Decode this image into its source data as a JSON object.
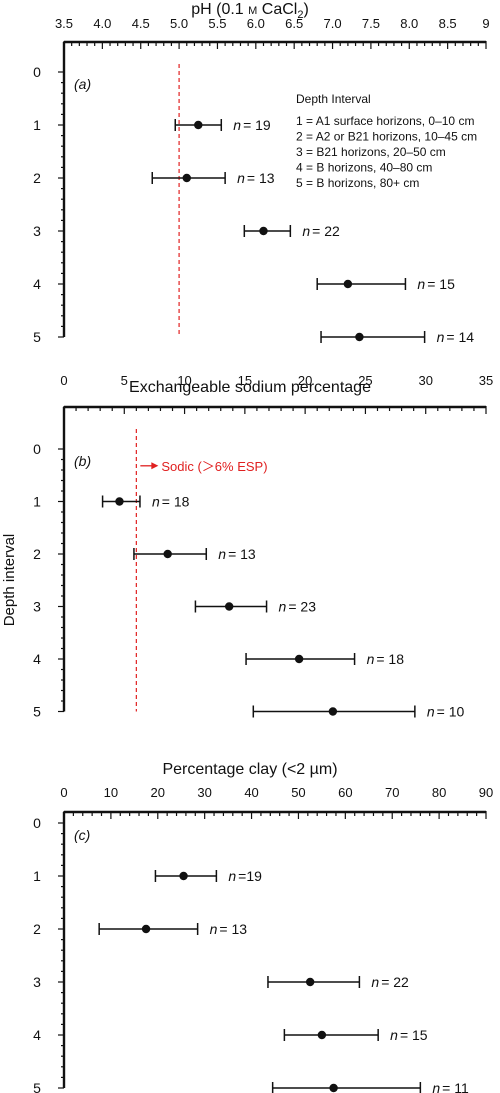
{
  "chart_data": [
    {
      "type": "scatter",
      "panel": "(a)",
      "title": "pH (0.1 M CaCl2)",
      "title_parts": {
        "pre": "pH (0.1 ",
        "unit_m": "M",
        "mid": " CaCl",
        "sub": "2",
        "post": ")"
      },
      "xlim": [
        3.5,
        9
      ],
      "xticks": [
        "3.5",
        "4.0",
        "4.5",
        "5.0",
        "5.5",
        "6.0",
        "6.5",
        "7.0",
        "7.5",
        "8.0",
        "8.5",
        "9"
      ],
      "xtick_values": [
        3.5,
        4.0,
        4.5,
        5.0,
        5.5,
        6.0,
        6.5,
        7.0,
        7.5,
        8.0,
        8.5,
        9.0
      ],
      "yticks": [
        "0",
        "1",
        "2",
        "3",
        "4",
        "5"
      ],
      "ylim": [
        0,
        5
      ],
      "points": [
        {
          "depth": 1,
          "mean": 5.25,
          "low": 4.95,
          "high": 5.55,
          "n_label": "= 19"
        },
        {
          "depth": 2,
          "mean": 5.1,
          "low": 4.65,
          "high": 5.6,
          "n_label": "= 13"
        },
        {
          "depth": 3,
          "mean": 6.1,
          "low": 5.85,
          "high": 6.45,
          "n_label": "= 22"
        },
        {
          "depth": 4,
          "mean": 7.2,
          "low": 6.8,
          "high": 7.95,
          "n_label": "= 15"
        },
        {
          "depth": 5,
          "mean": 7.35,
          "low": 6.85,
          "high": 8.2,
          "n_label": "= 14"
        }
      ],
      "reference_line": {
        "x": 5.0
      },
      "legend": {
        "title": "Depth Interval",
        "items": [
          "1 = A1 surface horizons, 0–10 cm",
          "2 = A2 or B21 horizons, 10–45 cm",
          "3 = B21 horizons, 20–50 cm",
          "4 = B horizons, 40–80 cm",
          "5 = B horizons, 80+ cm"
        ]
      }
    },
    {
      "type": "scatter",
      "panel": "(b)",
      "title": "Exchangeable sodium percentage",
      "xlim": [
        0,
        35
      ],
      "xticks": [
        "0",
        "5",
        "10",
        "15",
        "20",
        "25",
        "30",
        "35"
      ],
      "xtick_values": [
        0,
        5,
        10,
        15,
        20,
        25,
        30,
        35
      ],
      "yticks": [
        "0",
        "1",
        "2",
        "3",
        "4",
        "5"
      ],
      "ylim": [
        0,
        5
      ],
      "ylabel": "Depth interval",
      "points": [
        {
          "depth": 1,
          "mean": 4.6,
          "low": 3.2,
          "high": 6.3,
          "n_label": "= 18"
        },
        {
          "depth": 2,
          "mean": 8.6,
          "low": 5.8,
          "high": 11.8,
          "n_label": "= 13"
        },
        {
          "depth": 3,
          "mean": 13.7,
          "low": 10.9,
          "high": 16.8,
          "n_label": "= 23"
        },
        {
          "depth": 4,
          "mean": 19.5,
          "low": 15.1,
          "high": 24.1,
          "n_label": "= 18"
        },
        {
          "depth": 5,
          "mean": 22.3,
          "low": 15.7,
          "high": 29.1,
          "n_label": "= 10"
        }
      ],
      "reference_line": {
        "x": 6
      },
      "annotation": "Sodic (＞6% ESP)"
    },
    {
      "type": "scatter",
      "panel": "(c)",
      "title": "Percentage clay (<2 µm)",
      "xlim": [
        0,
        90
      ],
      "xticks": [
        "0",
        "10",
        "20",
        "30",
        "40",
        "50",
        "60",
        "70",
        "80",
        "90"
      ],
      "xtick_values": [
        0,
        10,
        20,
        30,
        40,
        50,
        60,
        70,
        80,
        90
      ],
      "yticks": [
        "0",
        "1",
        "2",
        "3",
        "4",
        "5"
      ],
      "ylim": [
        0,
        5
      ],
      "points": [
        {
          "depth": 1,
          "mean": 25.5,
          "low": 19.5,
          "high": 32.5,
          "n_label": "=19"
        },
        {
          "depth": 2,
          "mean": 17.5,
          "low": 7.5,
          "high": 28.5,
          "n_label": "= 13"
        },
        {
          "depth": 3,
          "mean": 52.5,
          "low": 43.5,
          "high": 63,
          "n_label": "= 22"
        },
        {
          "depth": 4,
          "mean": 55,
          "low": 47,
          "high": 67,
          "n_label": "= 15"
        },
        {
          "depth": 5,
          "mean": 57.5,
          "low": 44.5,
          "high": 76,
          "n_label": "= 11"
        }
      ]
    }
  ]
}
